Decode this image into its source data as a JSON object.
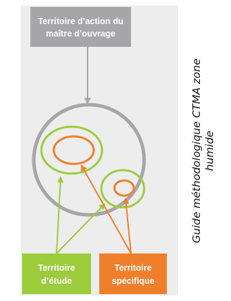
{
  "diagram": {
    "box_owner": {
      "line1": "Territoire d’action du",
      "line2": "maître d’ouvrage"
    },
    "box_study": {
      "line1": "Territoire",
      "line2": "d’étude"
    },
    "box_specific": {
      "line1": "Territoire",
      "line2": "spécifique"
    }
  },
  "caption": {
    "line1": "Guide méthodologique CTMA zone",
    "line2": "humide"
  },
  "colors": {
    "panel_bg": "#ededed",
    "owner_box": "#a6a6a8",
    "owner_text": "#ffffff",
    "owner_circle": "#a6a6a8",
    "study_green": "#9ccc3c",
    "specific_orange": "#f07f2c",
    "box_text": "#ffffff"
  }
}
